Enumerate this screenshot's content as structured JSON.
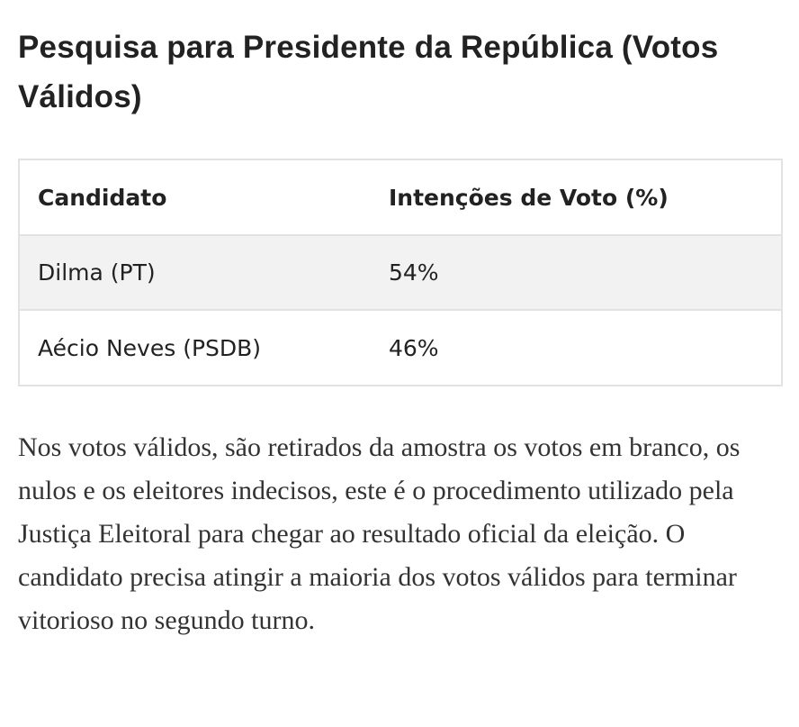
{
  "article": {
    "title": "Pesquisa para Presidente da República (Votos Válidos)",
    "table": {
      "headers": [
        "Candidato",
        "Intenções de Voto (%)"
      ],
      "rows": [
        {
          "candidate": "Dilma (PT)",
          "votes": "54%"
        },
        {
          "candidate": "Aécio Neves (PSDB)",
          "votes": "46%"
        }
      ]
    },
    "paragraph": "Nos votos válidos, são retirados da amostra os votos em branco, os nulos e os eleitores indecisos, este é o procedimento utilizado pela Justiça Eleitoral para chegar ao resultado oficial da eleição. O candidato precisa atingir a maioria dos votos válidos para terminar vitorioso no segundo turno."
  }
}
